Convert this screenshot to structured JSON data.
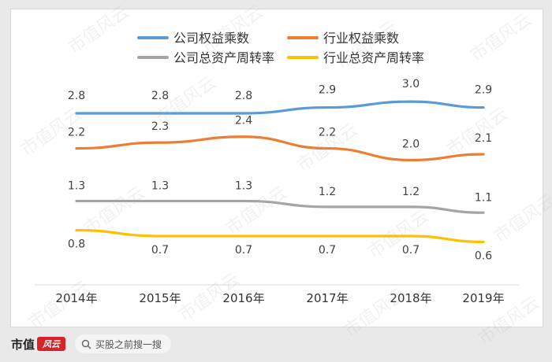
{
  "watermark_text": "市值风云",
  "footer": {
    "brand_text": "市值",
    "brand_mark_text": "风云",
    "search_label": "买股之前搜一搜"
  },
  "colors": {
    "blue": "#5b9bd5",
    "orange": "#ed7d31",
    "gray": "#a5a5a5",
    "gold": "#ffc000"
  },
  "chart_data": {
    "type": "line",
    "categories": [
      "2014年",
      "2015年",
      "2016年",
      "2017年",
      "2018年",
      "2019年"
    ],
    "series": [
      {
        "name": "公司权益乘数",
        "values": [
          2.8,
          2.8,
          2.8,
          2.9,
          3.0,
          2.9
        ],
        "color": "#5b9bd5",
        "labels": [
          "2.8",
          "2.8",
          "2.8",
          "2.9",
          "3.0",
          "2.9"
        ]
      },
      {
        "name": "行业权益乘数",
        "values": [
          2.2,
          2.3,
          2.4,
          2.2,
          2.0,
          2.1
        ],
        "color": "#ed7d31",
        "labels": [
          "2.2",
          "2.3",
          "2.4",
          "2.2",
          "2.0",
          "2.1"
        ]
      },
      {
        "name": "公司总资产周转率",
        "values": [
          1.3,
          1.3,
          1.3,
          1.2,
          1.2,
          1.1
        ],
        "color": "#a5a5a5",
        "labels": [
          "1.3",
          "1.3",
          "1.3",
          "1.2",
          "1.2",
          "1.1"
        ]
      },
      {
        "name": "行业总资产周转率",
        "values": [
          0.8,
          0.7,
          0.7,
          0.7,
          0.7,
          0.6
        ],
        "color": "#ffc000",
        "labels": [
          "0.8",
          "0.7",
          "0.7",
          "0.7",
          "0.7",
          "0.6"
        ]
      }
    ],
    "title": "",
    "xlabel": "",
    "ylabel": "",
    "legend_position": "top-center",
    "grid": false
  }
}
